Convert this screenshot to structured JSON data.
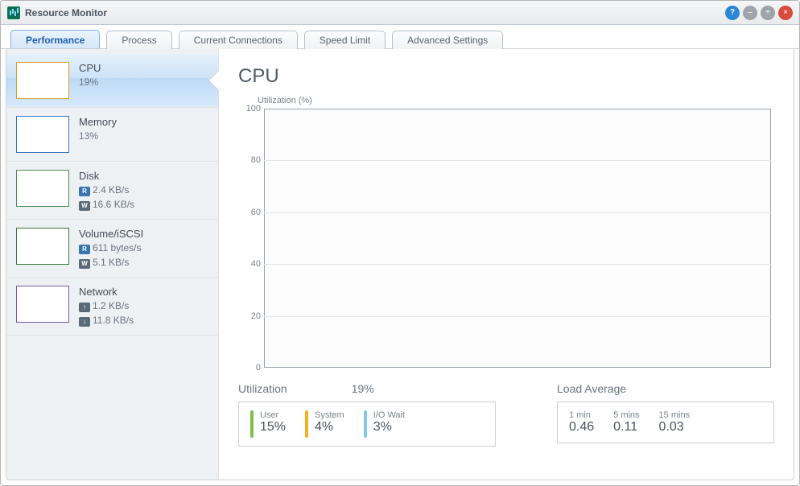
{
  "window": {
    "title": "Resource Monitor"
  },
  "tabs": [
    {
      "label": "Performance",
      "active": true
    },
    {
      "label": "Process",
      "active": false
    },
    {
      "label": "Current Connections",
      "active": false
    },
    {
      "label": "Speed Limit",
      "active": false
    },
    {
      "label": "Advanced Settings",
      "active": false
    }
  ],
  "side": {
    "items": [
      {
        "key": "cpu",
        "title": "CPU",
        "lines": [
          "19%"
        ],
        "selected": true,
        "thumbClass": "cpu"
      },
      {
        "key": "memory",
        "title": "Memory",
        "lines": [
          "13%"
        ],
        "selected": false,
        "thumbClass": "memory"
      },
      {
        "key": "disk",
        "title": "Disk",
        "badged": [
          [
            "R",
            "2.4 KB/s"
          ],
          [
            "W",
            "16.6 KB/s"
          ]
        ],
        "selected": false,
        "thumbClass": "disk"
      },
      {
        "key": "vol",
        "title": "Volume/iSCSI",
        "badged": [
          [
            "R",
            "611 bytes/s"
          ],
          [
            "W",
            "5.1 KB/s"
          ]
        ],
        "selected": false,
        "thumbClass": "vol"
      },
      {
        "key": "net",
        "title": "Network",
        "badged": [
          [
            "↑",
            "1.2 KB/s"
          ],
          [
            "↓",
            "11.8 KB/s"
          ]
        ],
        "selected": false,
        "thumbClass": "net"
      }
    ]
  },
  "detail": {
    "heading": "CPU",
    "chart": {
      "ylabel": "Utilization (%)",
      "ylim": [
        0,
        100
      ],
      "yticks": [
        0,
        20,
        40,
        60,
        80,
        100
      ],
      "grid_color": "#e1e5e9",
      "border_color": "#9aa2ab",
      "background_color": "#fcfcfd",
      "series": []
    },
    "utilization": {
      "title": "Utilization",
      "overall": "19%",
      "metrics": [
        {
          "label": "User",
          "value": "15%",
          "color": "#7cc142"
        },
        {
          "label": "System",
          "value": "4%",
          "color": "#f2b022"
        },
        {
          "label": "I/O Wait",
          "value": "3%",
          "color": "#7fc9e6"
        }
      ]
    },
    "load": {
      "title": "Load Average",
      "cols": [
        {
          "label": "1 min",
          "value": "0.46"
        },
        {
          "label": "5 mins",
          "value": "0.11"
        },
        {
          "label": "15 mins",
          "value": "0.03"
        }
      ]
    }
  },
  "style": {
    "tab_active_bg": "#d5e8f9",
    "tab_active_fg": "#1e5fab",
    "side_selected_bg": "#cde3f8"
  }
}
